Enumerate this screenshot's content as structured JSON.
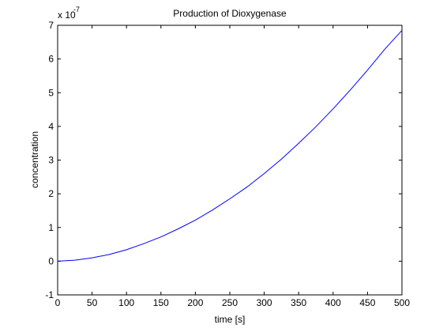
{
  "chart_data": {
    "type": "line",
    "title": "Production of Dioxygenase",
    "xlabel": "time [s]",
    "ylabel": "concentration",
    "y_exponent_label": "x 10",
    "y_exponent_power": "-7",
    "xlim": [
      0,
      500
    ],
    "ylim": [
      -1,
      7
    ],
    "x_ticks": [
      0,
      50,
      100,
      150,
      200,
      250,
      300,
      350,
      400,
      450,
      500
    ],
    "y_ticks": [
      -1,
      0,
      1,
      2,
      3,
      4,
      5,
      6,
      7
    ],
    "grid": false,
    "line_color": "#0000ff",
    "series": [
      {
        "x": [
          0,
          25,
          50,
          75,
          100,
          125,
          150,
          175,
          200,
          225,
          250,
          275,
          300,
          325,
          350,
          375,
          400,
          425,
          450,
          475,
          500
        ],
        "values": [
          0.0,
          0.03,
          0.1,
          0.2,
          0.34,
          0.52,
          0.72,
          0.96,
          1.22,
          1.52,
          1.85,
          2.2,
          2.6,
          3.03,
          3.5,
          3.99,
          4.52,
          5.08,
          5.67,
          6.29,
          6.85
        ]
      }
    ]
  }
}
